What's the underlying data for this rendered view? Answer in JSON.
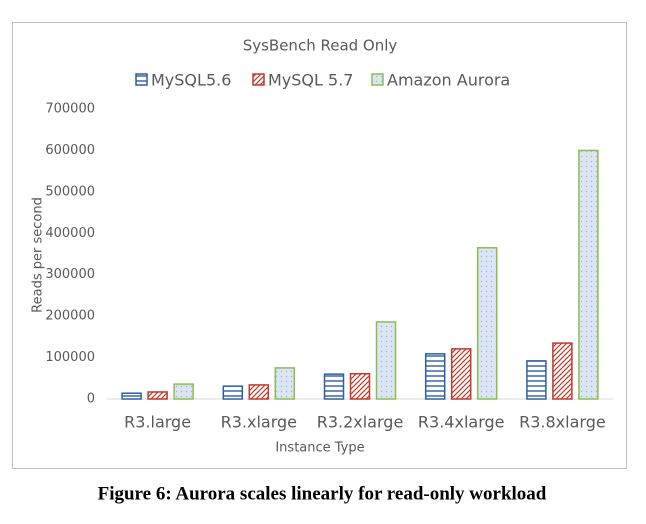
{
  "chart_data": {
    "type": "bar",
    "title": "SysBench Read Only",
    "x_label": "Instance Type",
    "y_label": "Reads per second",
    "caption": "Figure 6: Aurora scales linearly for read-only workload",
    "categories": [
      "R3.large",
      "R3.xlarge",
      "R3.2xlarge",
      "R3.4xlarge",
      "R3.8xlarge"
    ],
    "series": [
      {
        "name": "MySQL5.6",
        "color": "#2e5fa3",
        "pattern": "horizontal",
        "values": [
          14000,
          31000,
          60000,
          109000,
          92000
        ]
      },
      {
        "name": "MySQL 5.7",
        "color": "#c0392b",
        "pattern": "diagonal",
        "values": [
          17000,
          34000,
          61000,
          121000,
          135000
        ]
      },
      {
        "name": "Amazon Aurora",
        "color": "#8cbd4f",
        "pattern": "dots",
        "values": [
          36000,
          75000,
          186000,
          365000,
          600000
        ]
      }
    ],
    "ylim": [
      0,
      700000
    ],
    "yticks": [
      0,
      100000,
      200000,
      300000,
      400000,
      500000,
      600000,
      700000
    ],
    "grid": false,
    "legend": "top"
  }
}
